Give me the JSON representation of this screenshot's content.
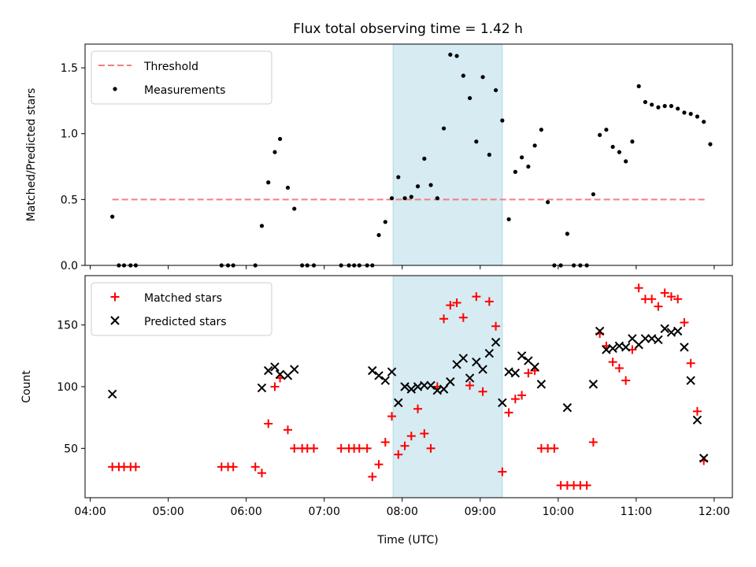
{
  "chart_data": {
    "title": "Flux total observing time = 1.42 h",
    "xlabel": "Time (UTC)",
    "x_ticks": [
      "04:00",
      "05:00",
      "06:00",
      "07:00",
      "08:00",
      "09:00",
      "10:00",
      "11:00",
      "12:00"
    ],
    "x_range": [
      "03:56",
      "12:14"
    ],
    "highlight_span": {
      "start": "07:53",
      "end": "09:17",
      "color": "#add8e6"
    },
    "top": {
      "type": "scatter",
      "ylabel": "Matched/Predicted stars",
      "ylim": [
        0,
        1.68
      ],
      "y_ticks": [
        "0.0",
        "0.5",
        "1.0",
        "1.5"
      ],
      "legend": {
        "position": "top-left",
        "entries": [
          "Threshold",
          "Measurements"
        ]
      },
      "threshold": {
        "name": "Threshold",
        "value": 0.5,
        "x": [
          "04:17",
          "11:53"
        ],
        "color": "#f08080"
      },
      "series": [
        {
          "name": "Measurements",
          "color": "#000000",
          "points": [
            [
              "04:17",
              0.37
            ],
            [
              "04:22",
              0.0
            ],
            [
              "04:26",
              0.0
            ],
            [
              "04:31",
              0.0
            ],
            [
              "04:35",
              0.0
            ],
            [
              "05:41",
              0.0
            ],
            [
              "05:46",
              0.0
            ],
            [
              "05:50",
              0.0
            ],
            [
              "06:07",
              0.0
            ],
            [
              "06:12",
              0.3
            ],
            [
              "06:17",
              0.63
            ],
            [
              "06:22",
              0.86
            ],
            [
              "06:26",
              0.96
            ],
            [
              "06:32",
              0.59
            ],
            [
              "06:37",
              0.43
            ],
            [
              "06:43",
              0.0
            ],
            [
              "06:47",
              0.0
            ],
            [
              "06:52",
              0.0
            ],
            [
              "07:13",
              0.0
            ],
            [
              "07:19",
              0.0
            ],
            [
              "07:23",
              0.0
            ],
            [
              "07:27",
              0.0
            ],
            [
              "07:33",
              0.0
            ],
            [
              "07:37",
              0.0
            ],
            [
              "07:42",
              0.23
            ],
            [
              "07:47",
              0.33
            ],
            [
              "07:52",
              0.51
            ],
            [
              "07:57",
              0.67
            ],
            [
              "08:02",
              0.51
            ],
            [
              "08:07",
              0.52
            ],
            [
              "08:12",
              0.6
            ],
            [
              "08:17",
              0.81
            ],
            [
              "08:22",
              0.61
            ],
            [
              "08:27",
              0.51
            ],
            [
              "08:32",
              1.04
            ],
            [
              "08:37",
              1.6
            ],
            [
              "08:42",
              1.59
            ],
            [
              "08:47",
              1.44
            ],
            [
              "08:52",
              1.27
            ],
            [
              "08:57",
              0.94
            ],
            [
              "09:02",
              1.43
            ],
            [
              "09:07",
              0.84
            ],
            [
              "09:12",
              1.33
            ],
            [
              "09:17",
              1.1
            ],
            [
              "09:22",
              0.35
            ],
            [
              "09:27",
              0.71
            ],
            [
              "09:32",
              0.82
            ],
            [
              "09:37",
              0.75
            ],
            [
              "09:42",
              0.91
            ],
            [
              "09:47",
              1.03
            ],
            [
              "09:52",
              0.48
            ],
            [
              "09:57",
              0.0
            ],
            [
              "10:02",
              0.0
            ],
            [
              "10:07",
              0.24
            ],
            [
              "10:12",
              0.0
            ],
            [
              "10:17",
              0.0
            ],
            [
              "10:22",
              0.0
            ],
            [
              "10:27",
              0.54
            ],
            [
              "10:32",
              0.99
            ],
            [
              "10:37",
              1.03
            ],
            [
              "10:42",
              0.9
            ],
            [
              "10:47",
              0.86
            ],
            [
              "10:52",
              0.79
            ],
            [
              "10:57",
              0.94
            ],
            [
              "11:02",
              1.36
            ],
            [
              "11:07",
              1.24
            ],
            [
              "11:12",
              1.22
            ],
            [
              "11:17",
              1.2
            ],
            [
              "11:22",
              1.21
            ],
            [
              "11:27",
              1.21
            ],
            [
              "11:32",
              1.19
            ],
            [
              "11:37",
              1.16
            ],
            [
              "11:42",
              1.15
            ],
            [
              "11:47",
              1.13
            ],
            [
              "11:52",
              1.09
            ],
            [
              "11:57",
              0.92
            ]
          ]
        }
      ]
    },
    "bottom": {
      "type": "scatter",
      "ylabel": "Count",
      "ylim": [
        10,
        190
      ],
      "y_ticks": [
        "50",
        "100",
        "150"
      ],
      "legend": {
        "position": "top-left",
        "entries": [
          "Matched stars",
          "Predicted stars"
        ]
      },
      "series": [
        {
          "name": "Matched stars",
          "marker": "+",
          "color": "#ff0000",
          "points": [
            [
              "04:17",
              35
            ],
            [
              "04:22",
              35
            ],
            [
              "04:26",
              35
            ],
            [
              "04:31",
              35
            ],
            [
              "04:35",
              35
            ],
            [
              "05:41",
              35
            ],
            [
              "05:46",
              35
            ],
            [
              "05:50",
              35
            ],
            [
              "06:07",
              35
            ],
            [
              "06:12",
              30
            ],
            [
              "06:17",
              70
            ],
            [
              "06:22",
              100
            ],
            [
              "06:26",
              107
            ],
            [
              "06:32",
              65
            ],
            [
              "06:37",
              50
            ],
            [
              "06:43",
              50
            ],
            [
              "06:47",
              50
            ],
            [
              "06:52",
              50
            ],
            [
              "07:13",
              50
            ],
            [
              "07:19",
              50
            ],
            [
              "07:23",
              50
            ],
            [
              "07:27",
              50
            ],
            [
              "07:33",
              50
            ],
            [
              "07:37",
              27
            ],
            [
              "07:42",
              37
            ],
            [
              "07:47",
              55
            ],
            [
              "07:52",
              76
            ],
            [
              "07:57",
              45
            ],
            [
              "08:02",
              52
            ],
            [
              "08:07",
              60
            ],
            [
              "08:12",
              82
            ],
            [
              "08:17",
              62
            ],
            [
              "08:22",
              50
            ],
            [
              "08:27",
              100
            ],
            [
              "08:32",
              155
            ],
            [
              "08:37",
              166
            ],
            [
              "08:42",
              168
            ],
            [
              "08:47",
              156
            ],
            [
              "08:52",
              101
            ],
            [
              "08:57",
              173
            ],
            [
              "09:02",
              96
            ],
            [
              "09:07",
              169
            ],
            [
              "09:12",
              149
            ],
            [
              "09:17",
              31
            ],
            [
              "09:22",
              79
            ],
            [
              "09:27",
              90
            ],
            [
              "09:32",
              93
            ],
            [
              "09:37",
              111
            ],
            [
              "09:42",
              113
            ],
            [
              "09:47",
              50
            ],
            [
              "09:52",
              50
            ],
            [
              "09:57",
              50
            ],
            [
              "10:02",
              20
            ],
            [
              "10:07",
              20
            ],
            [
              "10:12",
              20
            ],
            [
              "10:17",
              20
            ],
            [
              "10:22",
              20
            ],
            [
              "10:27",
              55
            ],
            [
              "10:32",
              143
            ],
            [
              "10:37",
              133
            ],
            [
              "10:42",
              120
            ],
            [
              "10:47",
              115
            ],
            [
              "10:52",
              105
            ],
            [
              "10:57",
              130
            ],
            [
              "11:02",
              180
            ],
            [
              "11:07",
              171
            ],
            [
              "11:12",
              171
            ],
            [
              "11:17",
              165
            ],
            [
              "11:22",
              176
            ],
            [
              "11:27",
              173
            ],
            [
              "11:32",
              171
            ],
            [
              "11:37",
              152
            ],
            [
              "11:42",
              119
            ],
            [
              "11:47",
              80
            ],
            [
              "11:52",
              40
            ]
          ]
        },
        {
          "name": "Predicted stars",
          "marker": "x",
          "color": "#000000",
          "points": [
            [
              "04:17",
              94
            ],
            [
              "06:12",
              99
            ],
            [
              "06:17",
              113
            ],
            [
              "06:22",
              116
            ],
            [
              "06:26",
              110
            ],
            [
              "06:32",
              109
            ],
            [
              "06:37",
              114
            ],
            [
              "07:37",
              113
            ],
            [
              "07:42",
              109
            ],
            [
              "07:47",
              105
            ],
            [
              "07:52",
              112
            ],
            [
              "07:57",
              87
            ],
            [
              "08:02",
              100
            ],
            [
              "08:07",
              98
            ],
            [
              "08:12",
              100
            ],
            [
              "08:17",
              101
            ],
            [
              "08:22",
              101
            ],
            [
              "08:27",
              97
            ],
            [
              "08:32",
              98
            ],
            [
              "08:37",
              104
            ],
            [
              "08:42",
              118
            ],
            [
              "08:47",
              123
            ],
            [
              "08:52",
              107
            ],
            [
              "08:57",
              120
            ],
            [
              "09:02",
              114
            ],
            [
              "09:07",
              127
            ],
            [
              "09:12",
              136
            ],
            [
              "09:17",
              87
            ],
            [
              "09:22",
              112
            ],
            [
              "09:27",
              111
            ],
            [
              "09:32",
              125
            ],
            [
              "09:37",
              121
            ],
            [
              "09:42",
              116
            ],
            [
              "09:47",
              102
            ],
            [
              "10:07",
              83
            ],
            [
              "10:27",
              102
            ],
            [
              "10:32",
              145
            ],
            [
              "10:37",
              130
            ],
            [
              "10:42",
              131
            ],
            [
              "10:47",
              133
            ],
            [
              "10:52",
              132
            ],
            [
              "10:57",
              139
            ],
            [
              "11:02",
              134
            ],
            [
              "11:07",
              139
            ],
            [
              "11:12",
              139
            ],
            [
              "11:17",
              138
            ],
            [
              "11:22",
              147
            ],
            [
              "11:27",
              144
            ],
            [
              "11:32",
              145
            ],
            [
              "11:37",
              132
            ],
            [
              "11:42",
              105
            ],
            [
              "11:47",
              73
            ],
            [
              "11:52",
              42
            ]
          ]
        }
      ]
    }
  }
}
